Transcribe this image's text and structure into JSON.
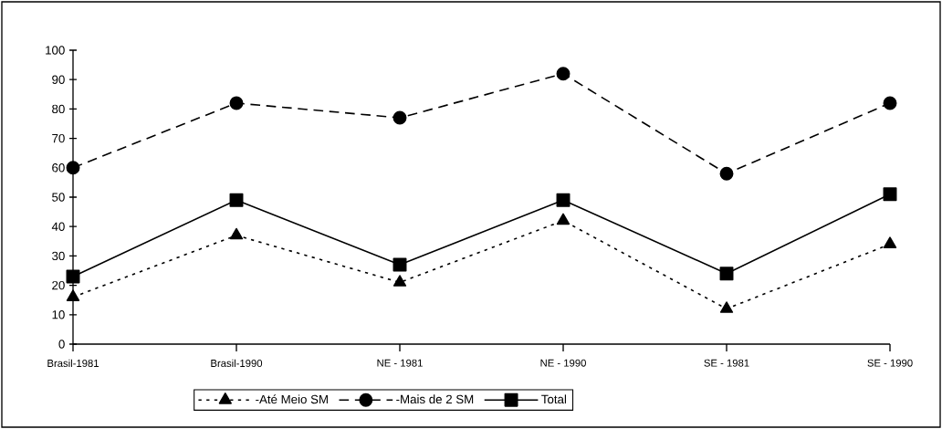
{
  "chart_data": {
    "type": "line",
    "categories": [
      "Brasil-1981",
      "Brasil-1990",
      "NE - 1981",
      "NE - 1990",
      "SE - 1981",
      "SE - 1990"
    ],
    "series": [
      {
        "name": "-Até Meio SM",
        "color": "#000000",
        "marker": "triangle",
        "line_style": "dotted",
        "values": [
          16,
          37,
          21,
          42,
          12,
          34
        ]
      },
      {
        "name": "-Mais de 2 SM",
        "color": "#000000",
        "marker": "circle",
        "line_style": "dashed",
        "values": [
          60,
          82,
          77,
          92,
          58,
          82
        ]
      },
      {
        "name": "Total",
        "color": "#000000",
        "marker": "square",
        "line_style": "solid",
        "values": [
          23,
          49,
          27,
          49,
          24,
          51
        ]
      }
    ],
    "ylim": [
      0,
      100
    ],
    "yticks": [
      0,
      10,
      20,
      30,
      40,
      50,
      60,
      70,
      80,
      90,
      100
    ],
    "grid": false,
    "legend": "bottom"
  }
}
